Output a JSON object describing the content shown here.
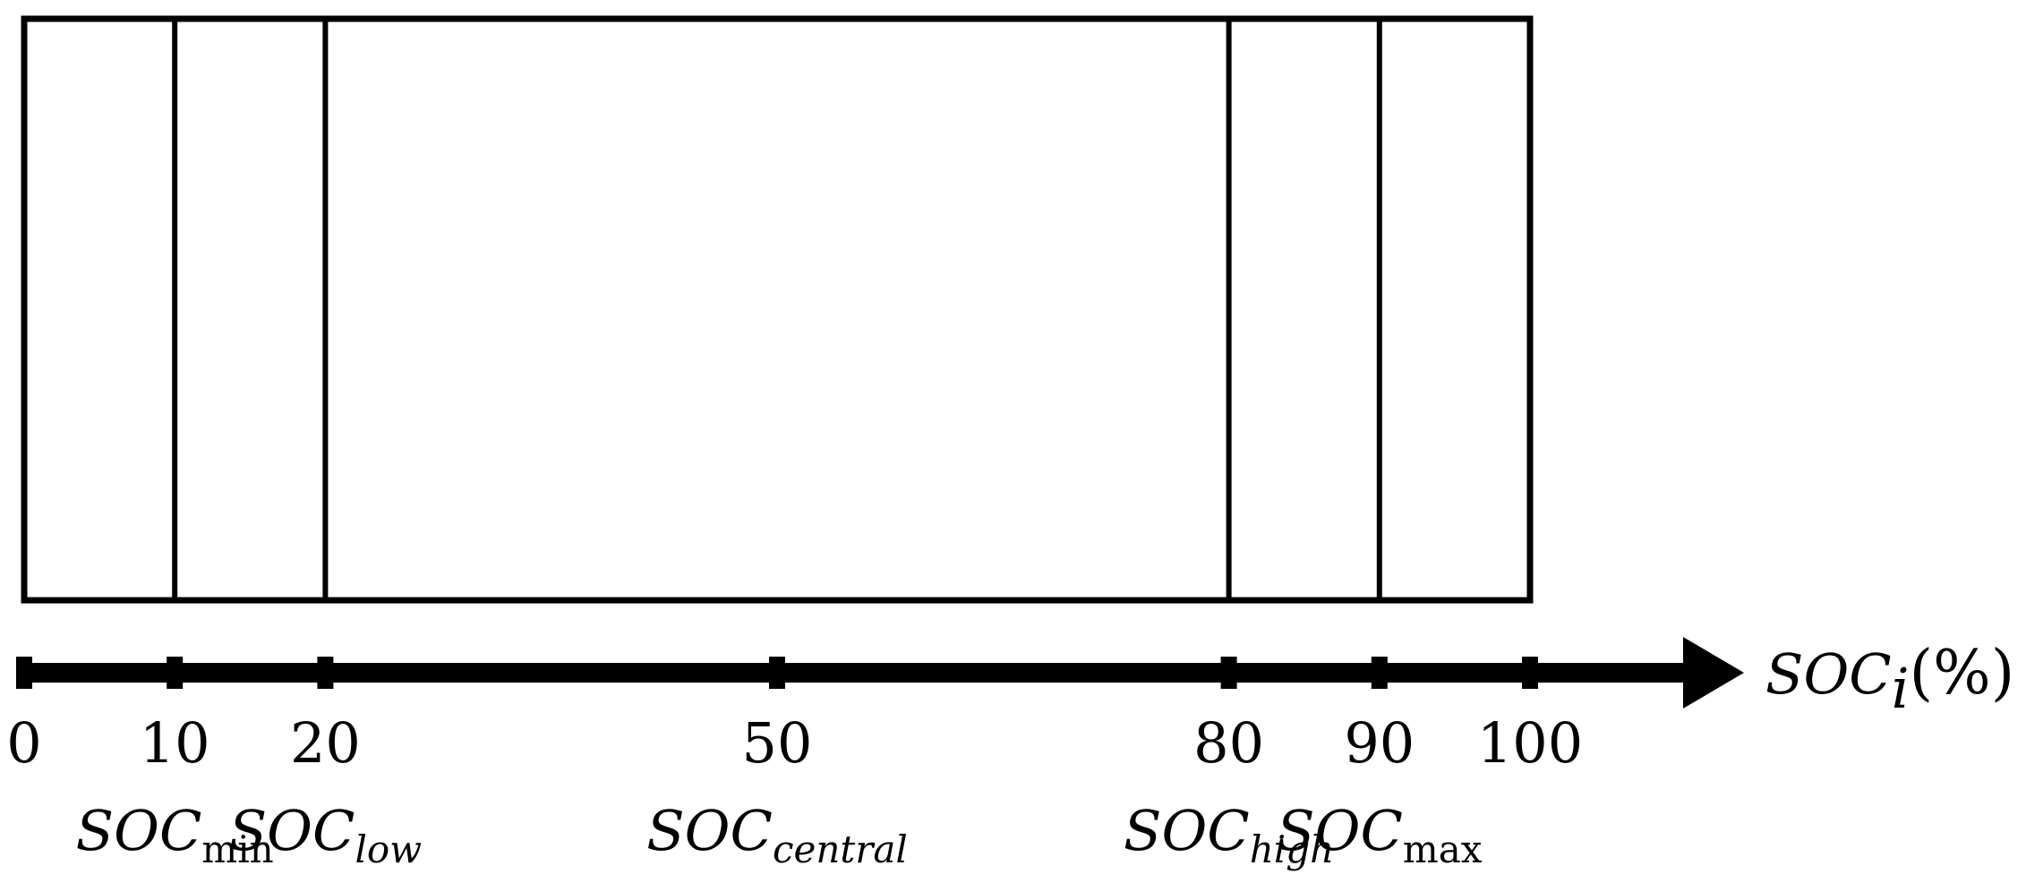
{
  "diagram": {
    "axis": {
      "label_main": "SOC",
      "label_sub": "i",
      "label_unit": "(%)",
      "ticks": [
        {
          "value": 0,
          "label": "0"
        },
        {
          "value": 10,
          "label": "10"
        },
        {
          "value": 20,
          "label": "20"
        },
        {
          "value": 50,
          "label": "50"
        },
        {
          "value": 80,
          "label": "80"
        },
        {
          "value": 90,
          "label": "90"
        },
        {
          "value": 100,
          "label": "100"
        }
      ]
    },
    "box_dividers": [
      10,
      20,
      80,
      90
    ],
    "levels": [
      {
        "value": 10,
        "main": "SOC",
        "sub": "min",
        "sub_italic": false
      },
      {
        "value": 20,
        "main": "SOC",
        "sub": "low",
        "sub_italic": true
      },
      {
        "value": 50,
        "main": "SOC",
        "sub": "central",
        "sub_italic": true
      },
      {
        "value": 80,
        "main": "SOC",
        "sub": "high",
        "sub_italic": true
      },
      {
        "value": 90,
        "main": "SOC",
        "sub": "max",
        "sub_italic": false
      }
    ]
  }
}
